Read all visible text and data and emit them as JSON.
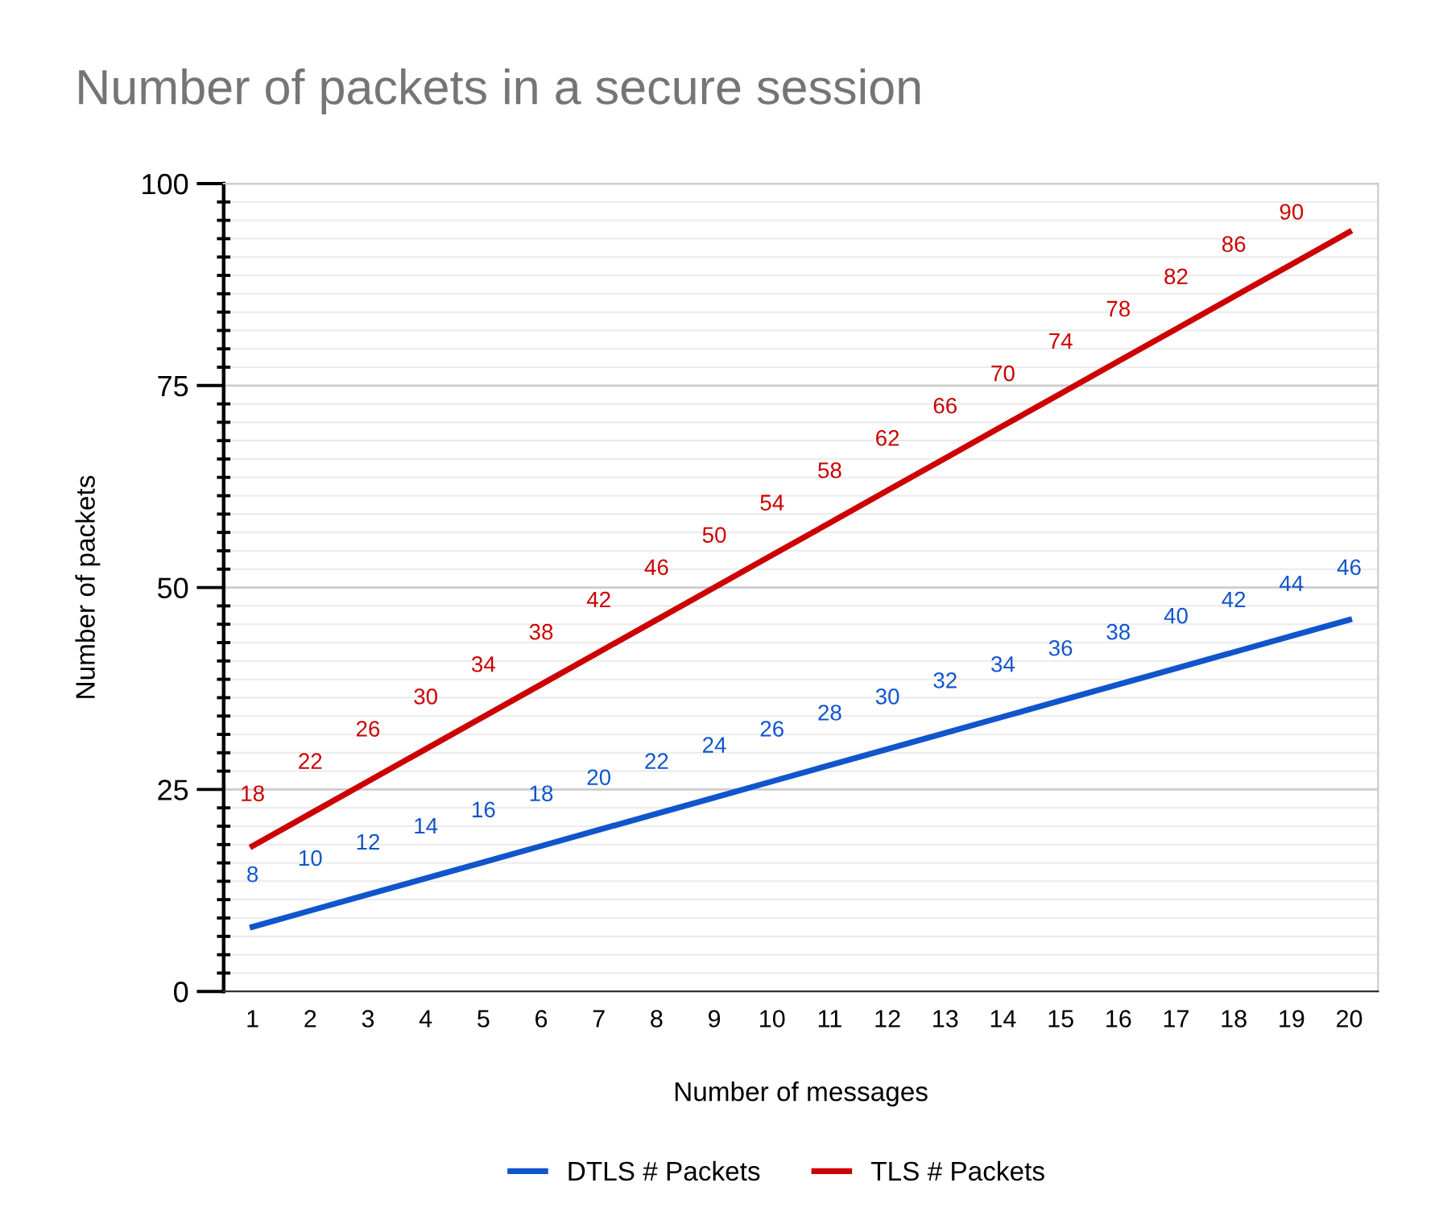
{
  "chart_data": {
    "type": "line",
    "title": "Number of packets in a secure session",
    "xlabel": "Number of messages",
    "ylabel": "Number of packets",
    "categories": [
      "1",
      "2",
      "3",
      "4",
      "5",
      "6",
      "7",
      "8",
      "9",
      "10",
      "11",
      "12",
      "13",
      "14",
      "15",
      "16",
      "17",
      "18",
      "19",
      "20"
    ],
    "series": [
      {
        "name": "DTLS # Packets",
        "color": "#1155cc",
        "values": [
          8,
          10,
          12,
          14,
          16,
          18,
          20,
          22,
          24,
          26,
          28,
          30,
          32,
          34,
          36,
          38,
          40,
          42,
          44,
          46
        ],
        "value_labels": [
          "8",
          "10",
          "12",
          "14",
          "16",
          "18",
          "20",
          "22",
          "24",
          "26",
          "28",
          "30",
          "32",
          "34",
          "36",
          "38",
          "40",
          "42",
          "44",
          "46"
        ]
      },
      {
        "name": "TLS # Packets",
        "color": "#cc0000",
        "values": [
          18,
          22,
          26,
          30,
          34,
          38,
          42,
          46,
          50,
          54,
          58,
          62,
          66,
          70,
          74,
          78,
          82,
          86,
          90,
          94
        ],
        "value_labels": [
          "18",
          "22",
          "26",
          "30",
          "34",
          "38",
          "42",
          "46",
          "50",
          "54",
          "58",
          "62",
          "66",
          "70",
          "74",
          "78",
          "82",
          "86",
          "90",
          null
        ]
      }
    ],
    "ylim": [
      0,
      100
    ],
    "yticks": [
      0,
      25,
      50,
      75,
      100
    ],
    "grid": "y",
    "legend": "bottom",
    "marker": "none",
    "line_style": "solid"
  }
}
